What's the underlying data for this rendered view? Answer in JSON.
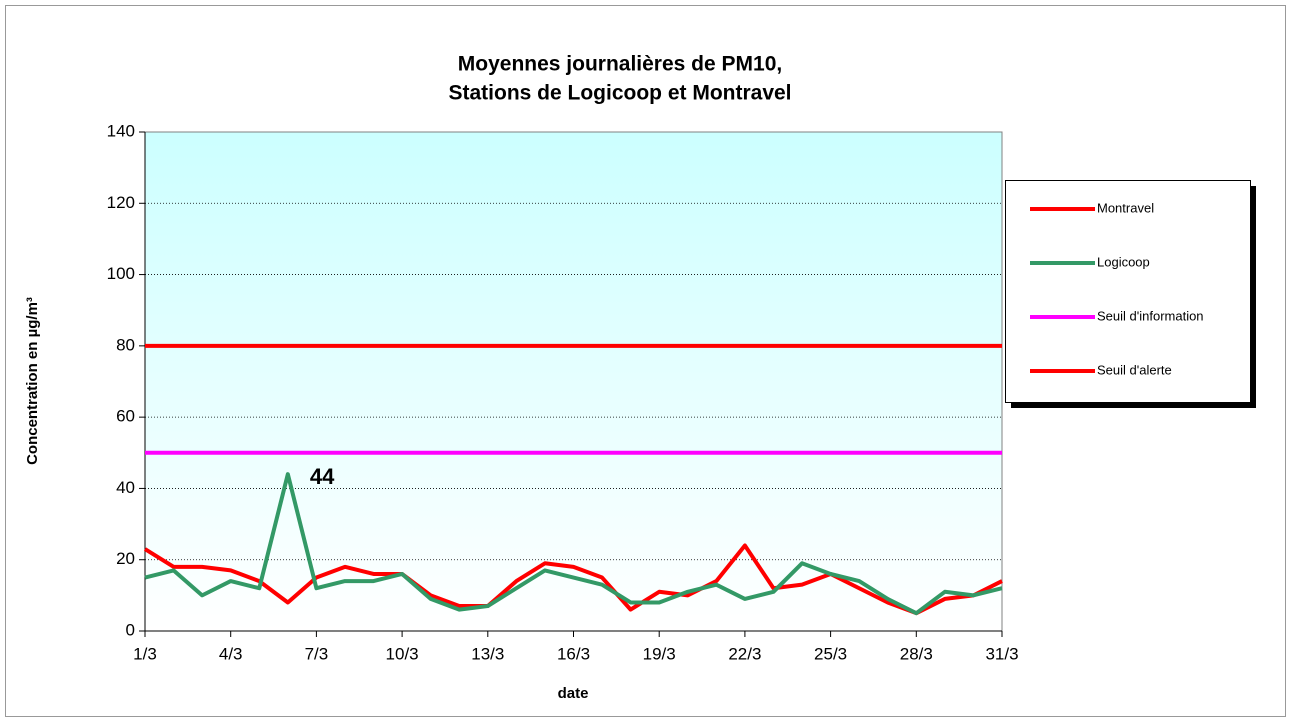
{
  "chart_data": {
    "type": "line",
    "title": [
      "Moyennes journalières de PM10,",
      "Stations de Logicoop et Montravel"
    ],
    "x_label": "date",
    "y_label": "Concentration en µg/m³",
    "categories": [
      "1/3",
      null,
      null,
      "4/3",
      null,
      null,
      "7/3",
      null,
      null,
      "10/3",
      null,
      null,
      "13/3",
      null,
      null,
      "16/3",
      null,
      null,
      "19/3",
      null,
      null,
      "22/3",
      null,
      null,
      "25/3",
      null,
      null,
      "28/3",
      null,
      null,
      "31/3"
    ],
    "series": [
      {
        "name": "Montravel",
        "color": "#ff0000",
        "values": [
          23,
          18,
          18,
          17,
          14,
          8,
          15,
          18,
          16,
          16,
          10,
          7,
          7,
          14,
          19,
          18,
          15,
          6,
          11,
          10,
          14,
          24,
          12,
          13,
          16,
          12,
          8,
          5,
          9,
          10,
          14
        ]
      },
      {
        "name": "Logicoop",
        "color": "#339966",
        "values": [
          15,
          17,
          10,
          14,
          12,
          44,
          12,
          14,
          14,
          16,
          9,
          6,
          7,
          12,
          17,
          15,
          13,
          8,
          8,
          11,
          13,
          9,
          11,
          19,
          16,
          14,
          9,
          5,
          11,
          10,
          12
        ]
      },
      {
        "name": "Seuil d'information",
        "color": "#ff00ff",
        "values": [
          50,
          50,
          50,
          50,
          50,
          50,
          50,
          50,
          50,
          50,
          50,
          50,
          50,
          50,
          50,
          50,
          50,
          50,
          50,
          50,
          50,
          50,
          50,
          50,
          50,
          50,
          50,
          50,
          50,
          50,
          50
        ]
      },
      {
        "name": "Seuil d'alerte",
        "color": "#ff0000",
        "values": [
          80,
          80,
          80,
          80,
          80,
          80,
          80,
          80,
          80,
          80,
          80,
          80,
          80,
          80,
          80,
          80,
          80,
          80,
          80,
          80,
          80,
          80,
          80,
          80,
          80,
          80,
          80,
          80,
          80,
          80,
          80
        ]
      }
    ],
    "annotated_point": {
      "series": 1,
      "index": 5
    },
    "ylim": [
      0,
      140
    ],
    "yticks": [
      0,
      20,
      40,
      60,
      80,
      100,
      120,
      140
    ],
    "grid": true,
    "legend": "right"
  }
}
